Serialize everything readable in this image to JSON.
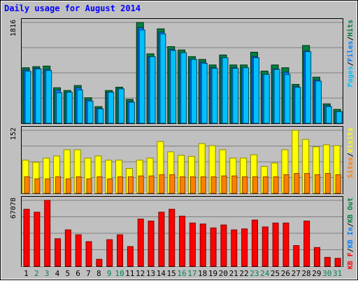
{
  "title": "Daily usage for August 2014",
  "colors": {
    "background": "#c0c0c0",
    "panel": "#c0c0c0",
    "grid": "#808080",
    "title": "#0000ff",
    "hits": "#008040",
    "files": "#0080ff",
    "pages": "#00c0ff",
    "visits": "#ffff00",
    "sites": "#ff8000",
    "kb_in": "#ff0000",
    "weekend_label": "#00805c",
    "weekday_label": "#000000"
  },
  "chart_data": [
    {
      "type": "bar",
      "panel": "hits-files-pages",
      "max_label": "1816",
      "ylim": [
        0,
        1816
      ],
      "legend": [
        {
          "text": "Pages",
          "color": "#00c0ff"
        },
        {
          "text": "Files",
          "color": "#0080ff"
        },
        {
          "text": "Hits",
          "color": "#008040"
        }
      ],
      "categories": [
        "1",
        "2",
        "3",
        "4",
        "5",
        "6",
        "7",
        "8",
        "9",
        "10",
        "11",
        "12",
        "13",
        "14",
        "15",
        "16",
        "17",
        "18",
        "19",
        "20",
        "21",
        "22",
        "23",
        "24",
        "25",
        "26",
        "27",
        "28",
        "29",
        "30",
        "31"
      ],
      "series": [
        {
          "name": "Hits",
          "values": [
            1000,
            1020,
            1030,
            640,
            590,
            680,
            460,
            300,
            590,
            650,
            430,
            1816,
            1250,
            1700,
            1380,
            1320,
            1200,
            1150,
            1050,
            1230,
            1050,
            1050,
            1280,
            940,
            1050,
            1000,
            700,
            1400,
            830,
            350,
            250
          ]
        },
        {
          "name": "Files",
          "values": [
            960,
            990,
            970,
            600,
            560,
            640,
            420,
            270,
            560,
            620,
            390,
            1720,
            1200,
            1640,
            1330,
            1270,
            1150,
            1100,
            1000,
            1180,
            1000,
            1000,
            1200,
            880,
            980,
            920,
            660,
            1300,
            780,
            320,
            210
          ]
        },
        {
          "name": "Pages",
          "values": [
            940,
            980,
            950,
            550,
            560,
            600,
            400,
            260,
            560,
            620,
            380,
            1680,
            1200,
            1610,
            1310,
            1270,
            1150,
            1080,
            990,
            1180,
            990,
            1000,
            1180,
            880,
            970,
            880,
            650,
            1290,
            760,
            300,
            210
          ]
        }
      ]
    },
    {
      "type": "bar",
      "panel": "visits-sites",
      "max_label": "152",
      "ylim": [
        0,
        152
      ],
      "legend": [
        {
          "text": "Sites",
          "color": "#ff8000"
        },
        {
          "text": "Visits",
          "color": "#ffff00"
        }
      ],
      "categories": [
        "1",
        "2",
        "3",
        "4",
        "5",
        "6",
        "7",
        "8",
        "9",
        "10",
        "11",
        "12",
        "13",
        "14",
        "15",
        "16",
        "17",
        "18",
        "19",
        "20",
        "21",
        "22",
        "23",
        "24",
        "25",
        "26",
        "27",
        "28",
        "29",
        "30",
        "31"
      ],
      "series": [
        {
          "name": "Visits",
          "values": [
            80,
            75,
            85,
            90,
            105,
            105,
            85,
            90,
            80,
            80,
            60,
            80,
            85,
            125,
            100,
            92,
            89,
            120,
            115,
            105,
            85,
            85,
            93,
            65,
            73,
            105,
            152,
            130,
            112,
            117,
            115
          ]
        },
        {
          "name": "Sites",
          "values": [
            40,
            35,
            35,
            40,
            35,
            40,
            35,
            40,
            35,
            40,
            40,
            42,
            42,
            45,
            45,
            40,
            40,
            40,
            40,
            42,
            42,
            40,
            40,
            40,
            40,
            45,
            48,
            48,
            45,
            48,
            45
          ]
        }
      ]
    },
    {
      "type": "bar",
      "panel": "kb",
      "max_label": "67078",
      "ylim": [
        0,
        67078
      ],
      "legend": [
        {
          "text": "KB F",
          "color": "#ff0000"
        },
        {
          "text": "KB In",
          "color": "#0080ff"
        },
        {
          "text": "KB Out",
          "color": "#008040"
        }
      ],
      "categories": [
        "1",
        "2",
        "3",
        "4",
        "5",
        "6",
        "7",
        "8",
        "9",
        "10",
        "11",
        "12",
        "13",
        "14",
        "15",
        "16",
        "17",
        "18",
        "19",
        "20",
        "21",
        "22",
        "23",
        "24",
        "25",
        "26",
        "27",
        "28",
        "29",
        "30",
        "31"
      ],
      "series": [
        {
          "name": "KB F",
          "values": [
            58000,
            55000,
            67078,
            28000,
            37000,
            32000,
            25000,
            7000,
            27000,
            32000,
            20000,
            48000,
            46000,
            55000,
            58000,
            51000,
            44000,
            43000,
            39000,
            42000,
            37000,
            38000,
            47000,
            40000,
            44000,
            44000,
            21000,
            46000,
            19000,
            9000,
            8000
          ]
        }
      ]
    }
  ],
  "x_axis": {
    "labels": [
      "1",
      "2",
      "3",
      "4",
      "5",
      "6",
      "7",
      "8",
      "9",
      "10",
      "11",
      "12",
      "13",
      "14",
      "15",
      "16",
      "17",
      "18",
      "19",
      "20",
      "21",
      "22",
      "23",
      "24",
      "25",
      "26",
      "27",
      "28",
      "29",
      "30",
      "31"
    ],
    "weekend": [
      false,
      true,
      true,
      false,
      false,
      false,
      false,
      false,
      true,
      true,
      false,
      false,
      false,
      false,
      false,
      true,
      true,
      false,
      false,
      false,
      false,
      false,
      true,
      true,
      false,
      false,
      false,
      false,
      false,
      true,
      true
    ]
  }
}
